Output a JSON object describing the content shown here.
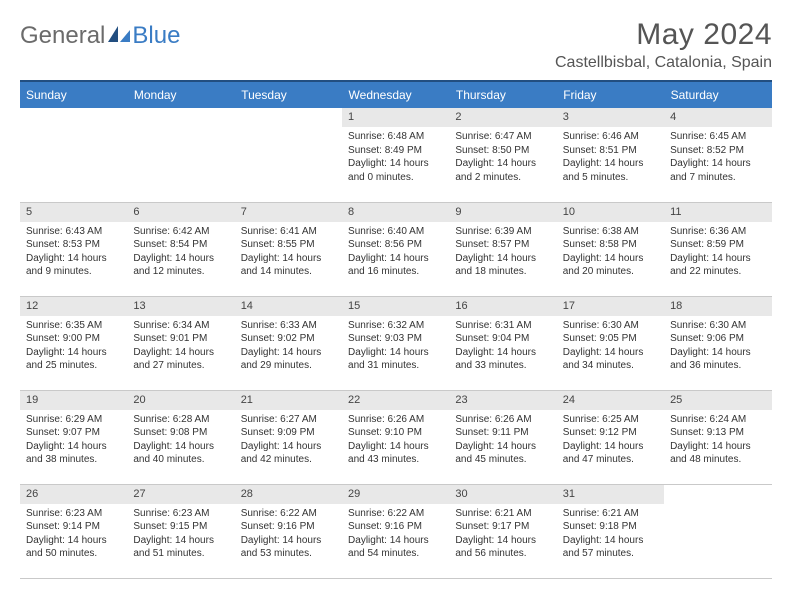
{
  "brand": {
    "part1": "General",
    "part2": "Blue"
  },
  "title": "May 2024",
  "location": "Castellbisbal, Catalonia, Spain",
  "weekdays": [
    "Sunday",
    "Monday",
    "Tuesday",
    "Wednesday",
    "Thursday",
    "Friday",
    "Saturday"
  ],
  "colors": {
    "header_bg": "#3a7cc4",
    "header_text": "#ffffff",
    "daynum_bg": "#e8e8e8",
    "text": "#333333",
    "title_text": "#555555",
    "logo_gray": "#6b6b6b",
    "rule": "#224e80",
    "cell_border": "#c9c9c9"
  },
  "labels": {
    "sunrise": "Sunrise",
    "sunset": "Sunset",
    "daylight": "Daylight"
  },
  "weeks": [
    [
      null,
      null,
      null,
      {
        "n": "1",
        "sunrise": "6:48 AM",
        "sunset": "8:49 PM",
        "daylight": "14 hours and 0 minutes."
      },
      {
        "n": "2",
        "sunrise": "6:47 AM",
        "sunset": "8:50 PM",
        "daylight": "14 hours and 2 minutes."
      },
      {
        "n": "3",
        "sunrise": "6:46 AM",
        "sunset": "8:51 PM",
        "daylight": "14 hours and 5 minutes."
      },
      {
        "n": "4",
        "sunrise": "6:45 AM",
        "sunset": "8:52 PM",
        "daylight": "14 hours and 7 minutes."
      }
    ],
    [
      {
        "n": "5",
        "sunrise": "6:43 AM",
        "sunset": "8:53 PM",
        "daylight": "14 hours and 9 minutes."
      },
      {
        "n": "6",
        "sunrise": "6:42 AM",
        "sunset": "8:54 PM",
        "daylight": "14 hours and 12 minutes."
      },
      {
        "n": "7",
        "sunrise": "6:41 AM",
        "sunset": "8:55 PM",
        "daylight": "14 hours and 14 minutes."
      },
      {
        "n": "8",
        "sunrise": "6:40 AM",
        "sunset": "8:56 PM",
        "daylight": "14 hours and 16 minutes."
      },
      {
        "n": "9",
        "sunrise": "6:39 AM",
        "sunset": "8:57 PM",
        "daylight": "14 hours and 18 minutes."
      },
      {
        "n": "10",
        "sunrise": "6:38 AM",
        "sunset": "8:58 PM",
        "daylight": "14 hours and 20 minutes."
      },
      {
        "n": "11",
        "sunrise": "6:36 AM",
        "sunset": "8:59 PM",
        "daylight": "14 hours and 22 minutes."
      }
    ],
    [
      {
        "n": "12",
        "sunrise": "6:35 AM",
        "sunset": "9:00 PM",
        "daylight": "14 hours and 25 minutes."
      },
      {
        "n": "13",
        "sunrise": "6:34 AM",
        "sunset": "9:01 PM",
        "daylight": "14 hours and 27 minutes."
      },
      {
        "n": "14",
        "sunrise": "6:33 AM",
        "sunset": "9:02 PM",
        "daylight": "14 hours and 29 minutes."
      },
      {
        "n": "15",
        "sunrise": "6:32 AM",
        "sunset": "9:03 PM",
        "daylight": "14 hours and 31 minutes."
      },
      {
        "n": "16",
        "sunrise": "6:31 AM",
        "sunset": "9:04 PM",
        "daylight": "14 hours and 33 minutes."
      },
      {
        "n": "17",
        "sunrise": "6:30 AM",
        "sunset": "9:05 PM",
        "daylight": "14 hours and 34 minutes."
      },
      {
        "n": "18",
        "sunrise": "6:30 AM",
        "sunset": "9:06 PM",
        "daylight": "14 hours and 36 minutes."
      }
    ],
    [
      {
        "n": "19",
        "sunrise": "6:29 AM",
        "sunset": "9:07 PM",
        "daylight": "14 hours and 38 minutes."
      },
      {
        "n": "20",
        "sunrise": "6:28 AM",
        "sunset": "9:08 PM",
        "daylight": "14 hours and 40 minutes."
      },
      {
        "n": "21",
        "sunrise": "6:27 AM",
        "sunset": "9:09 PM",
        "daylight": "14 hours and 42 minutes."
      },
      {
        "n": "22",
        "sunrise": "6:26 AM",
        "sunset": "9:10 PM",
        "daylight": "14 hours and 43 minutes."
      },
      {
        "n": "23",
        "sunrise": "6:26 AM",
        "sunset": "9:11 PM",
        "daylight": "14 hours and 45 minutes."
      },
      {
        "n": "24",
        "sunrise": "6:25 AM",
        "sunset": "9:12 PM",
        "daylight": "14 hours and 47 minutes."
      },
      {
        "n": "25",
        "sunrise": "6:24 AM",
        "sunset": "9:13 PM",
        "daylight": "14 hours and 48 minutes."
      }
    ],
    [
      {
        "n": "26",
        "sunrise": "6:23 AM",
        "sunset": "9:14 PM",
        "daylight": "14 hours and 50 minutes."
      },
      {
        "n": "27",
        "sunrise": "6:23 AM",
        "sunset": "9:15 PM",
        "daylight": "14 hours and 51 minutes."
      },
      {
        "n": "28",
        "sunrise": "6:22 AM",
        "sunset": "9:16 PM",
        "daylight": "14 hours and 53 minutes."
      },
      {
        "n": "29",
        "sunrise": "6:22 AM",
        "sunset": "9:16 PM",
        "daylight": "14 hours and 54 minutes."
      },
      {
        "n": "30",
        "sunrise": "6:21 AM",
        "sunset": "9:17 PM",
        "daylight": "14 hours and 56 minutes."
      },
      {
        "n": "31",
        "sunrise": "6:21 AM",
        "sunset": "9:18 PM",
        "daylight": "14 hours and 57 minutes."
      },
      null
    ]
  ]
}
